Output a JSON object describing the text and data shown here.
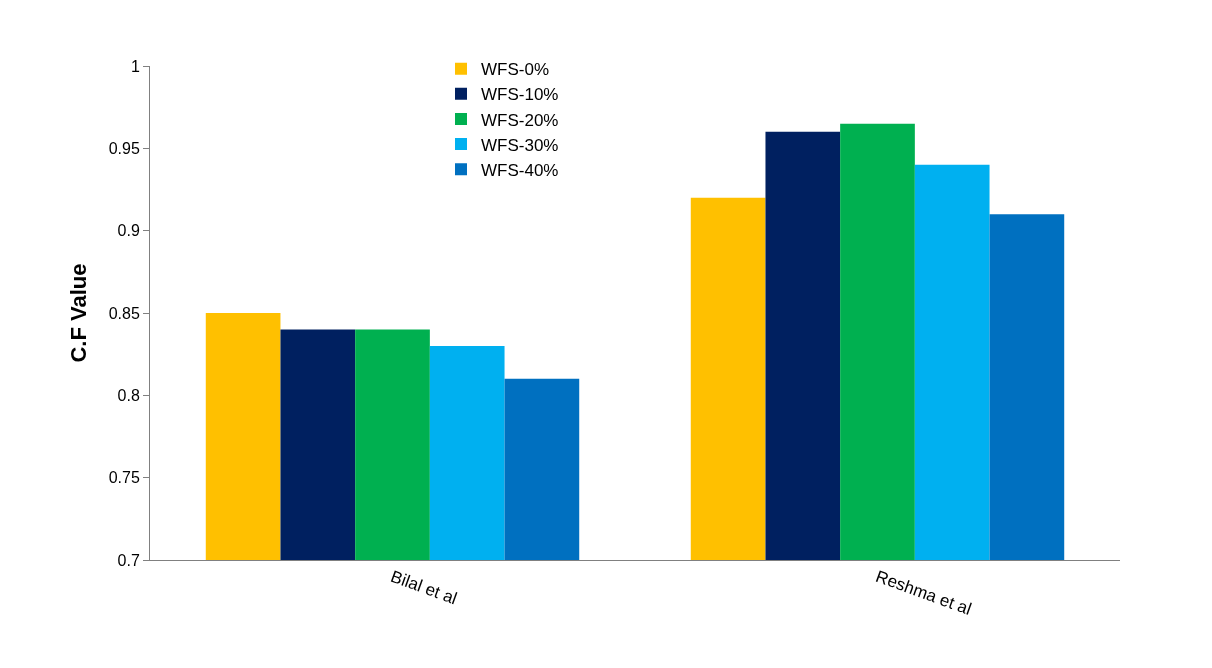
{
  "chart_data": {
    "type": "bar",
    "ylabel": "C.F Value",
    "categories": [
      "Bilal et al",
      "Reshma et al"
    ],
    "series": [
      {
        "name": "WFS-0%",
        "color": "#ffc000",
        "values": [
          0.85,
          0.92
        ]
      },
      {
        "name": "WFS-10%",
        "color": "#002060",
        "values": [
          0.84,
          0.96
        ]
      },
      {
        "name": "WFS-20%",
        "color": "#00b050",
        "values": [
          0.84,
          0.965
        ]
      },
      {
        "name": "WFS-30%",
        "color": "#00b0f0",
        "values": [
          0.83,
          0.94
        ]
      },
      {
        "name": "WFS-40%",
        "color": "#0070c0",
        "values": [
          0.81,
          0.91
        ]
      }
    ],
    "ylim": [
      0.7,
      1
    ],
    "yticks": [
      0.7,
      0.75,
      0.8,
      0.85,
      0.9,
      0.95,
      1
    ],
    "legend": "top"
  }
}
